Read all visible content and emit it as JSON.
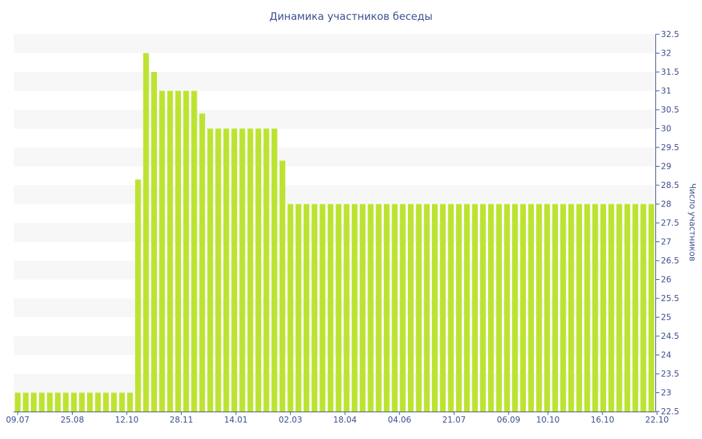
{
  "colors": {
    "bar": "#bde332",
    "band": "#f7f7f7",
    "axis": "#3e4f8f",
    "text": "#3e4f8f",
    "background": "#ffffff"
  },
  "chart_data": {
    "type": "bar",
    "title": "Динамика участников беседы",
    "xlabel": "",
    "ylabel": "Число участников",
    "y_axis_side": "right",
    "ylim": [
      22.5,
      32.5
    ],
    "y_step": 0.5,
    "y_ticks": [
      "22.5",
      "23",
      "23.5",
      "24",
      "24.5",
      "25",
      "25.5",
      "26",
      "26.5",
      "27",
      "27.5",
      "28",
      "28.5",
      "29",
      "29.5",
      "30",
      "30.5",
      "31",
      "31.5",
      "32",
      "32.5"
    ],
    "grid": "alternating-bands",
    "x_tick_labels": [
      {
        "label": "09.07",
        "index": 0
      },
      {
        "label": "25.08",
        "index": 6.8
      },
      {
        "label": "12.10",
        "index": 13.6
      },
      {
        "label": "28.11",
        "index": 20.4
      },
      {
        "label": "14.01",
        "index": 27.2
      },
      {
        "label": "02.03",
        "index": 34.0
      },
      {
        "label": "18.04",
        "index": 40.8
      },
      {
        "label": "04.06",
        "index": 47.6
      },
      {
        "label": "21.07",
        "index": 54.4
      },
      {
        "label": "06.09",
        "index": 61.2
      },
      {
        "label": "10.10",
        "index": 66.1
      },
      {
        "label": "16.10",
        "index": 72.9
      },
      {
        "label": "22.10",
        "index": 79.7
      }
    ],
    "values": [
      23,
      23,
      23,
      23,
      23,
      23,
      23,
      23,
      23,
      23,
      23,
      23,
      23,
      23,
      23,
      28.65,
      32,
      31.5,
      31,
      31,
      31,
      31,
      31,
      30.4,
      30,
      30,
      30,
      30,
      30,
      30,
      30,
      30,
      30,
      29.15,
      28,
      28,
      28,
      28,
      28,
      28,
      28,
      28,
      28,
      28,
      28,
      28,
      28,
      28,
      28,
      28,
      28,
      28,
      28,
      28,
      28,
      28,
      28,
      28,
      28,
      28,
      28,
      28,
      28,
      28,
      28,
      28,
      28,
      28,
      28,
      28,
      28,
      28,
      28,
      28,
      28,
      28,
      28,
      28,
      28,
      28
    ]
  }
}
